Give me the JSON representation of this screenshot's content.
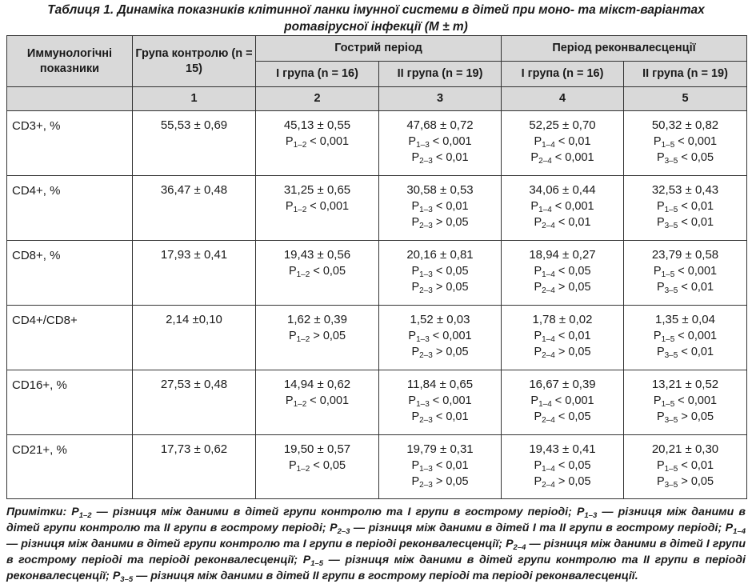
{
  "caption": {
    "line1": "Таблиця 1. Динаміка показників клітинної ланки імунної системи в дітей при моно- та мікст-варіантах",
    "line2": "ротавірусної інфекції (M ± m)"
  },
  "header": {
    "indicators": "Иммунологічні показники",
    "control_group": "Група контролю (n = 15)",
    "acute_period": "Гострий період",
    "convalescence_period": "Період реконвалесценції",
    "sub_columns": [
      "І група (n = 16)",
      "ІІ група (n = 19)",
      "І група (n = 16)",
      "ІІ група (n = 19)"
    ],
    "column_numbers": [
      "1",
      "2",
      "3",
      "4",
      "5"
    ]
  },
  "rows": [
    {
      "name": "CD3+, %",
      "c1": "55,53 ± 0,69",
      "c2": {
        "value": "45,13 ± 0,55",
        "p": [
          {
            "sub": "1–2",
            "rel": " < 0,001"
          }
        ]
      },
      "c3": {
        "value": "47,68 ± 0,72",
        "p": [
          {
            "sub": "1–3",
            "rel": " < 0,001"
          },
          {
            "sub": "2–3",
            "rel": " < 0,01"
          }
        ]
      },
      "c4": {
        "value": "52,25 ± 0,70",
        "p": [
          {
            "sub": "1–4",
            "rel": " < 0,01"
          },
          {
            "sub": "2–4",
            "rel": " < 0,001"
          }
        ]
      },
      "c5": {
        "value": "50,32 ± 0,82",
        "p": [
          {
            "sub": "1–5",
            "rel": " < 0,001"
          },
          {
            "sub": "3–5",
            "rel": " < 0,05"
          }
        ]
      }
    },
    {
      "name": "CD4+, %",
      "c1": "36,47 ± 0,48",
      "c2": {
        "value": "31,25 ± 0,65",
        "p": [
          {
            "sub": "1–2",
            "rel": " < 0,001"
          }
        ]
      },
      "c3": {
        "value": "30,58 ± 0,53",
        "p": [
          {
            "sub": "1–3",
            "rel": " < 0,01"
          },
          {
            "sub": "2–3",
            "rel": " > 0,05"
          }
        ]
      },
      "c4": {
        "value": "34,06 ± 0,44",
        "p": [
          {
            "sub": "1–4",
            "rel": " < 0,001"
          },
          {
            "sub": "2–4",
            "rel": " < 0,01"
          }
        ]
      },
      "c5": {
        "value": "32,53 ± 0,43",
        "p": [
          {
            "sub": "1–5",
            "rel": " < 0,01"
          },
          {
            "sub": "3–5",
            "rel": " < 0,01"
          }
        ]
      }
    },
    {
      "name": "CD8+, %",
      "c1": "17,93 ± 0,41",
      "c2": {
        "value": "19,43 ± 0,56",
        "p": [
          {
            "sub": "1–2",
            "rel": " < 0,05"
          }
        ]
      },
      "c3": {
        "value": "20,16 ± 0,81",
        "p": [
          {
            "sub": "1–3",
            "rel": " < 0,05"
          },
          {
            "sub": "2–3",
            "rel": " > 0,05"
          }
        ]
      },
      "c4": {
        "value": "18,94 ± 0,27",
        "p": [
          {
            "sub": "1–4",
            "rel": " < 0,05"
          },
          {
            "sub": "2–4",
            "rel": " > 0,05"
          }
        ]
      },
      "c5": {
        "value": "23,79 ± 0,58",
        "p": [
          {
            "sub": "1–5",
            "rel": " < 0,001"
          },
          {
            "sub": "3–5",
            "rel": " < 0,01"
          }
        ]
      }
    },
    {
      "name": "CD4+/CD8+",
      "c1": "2,14 ±0,10",
      "c2": {
        "value": "1,62 ± 0,39",
        "p": [
          {
            "sub": "1–2",
            "rel": " > 0,05"
          }
        ]
      },
      "c3": {
        "value": "1,52 ± 0,03",
        "p": [
          {
            "sub": "1–3",
            "rel": " < 0,001"
          },
          {
            "sub": "2–3",
            "rel": " > 0,05"
          }
        ]
      },
      "c4": {
        "value": "1,78 ± 0,02",
        "p": [
          {
            "sub": "1–4",
            "rel": " < 0,01"
          },
          {
            "sub": "2–4",
            "rel": " > 0,05"
          }
        ]
      },
      "c5": {
        "value": "1,35 ± 0,04",
        "p": [
          {
            "sub": "1–5",
            "rel": " < 0,001"
          },
          {
            "sub": "3–5",
            "rel": " < 0,01"
          }
        ]
      }
    },
    {
      "name": "CD16+, %",
      "c1": "27,53 ± 0,48",
      "c2": {
        "value": "14,94 ± 0,62",
        "p": [
          {
            "sub": "1–2",
            "rel": " < 0,001"
          }
        ]
      },
      "c3": {
        "value": "11,84 ± 0,65",
        "p": [
          {
            "sub": "1–3",
            "rel": " < 0,001"
          },
          {
            "sub": "2–3",
            "rel": " < 0,01"
          }
        ]
      },
      "c4": {
        "value": "16,67 ± 0,39",
        "p": [
          {
            "sub": "1–4",
            "rel": " < 0,001"
          },
          {
            "sub": "2–4",
            "rel": " < 0,05"
          }
        ]
      },
      "c5": {
        "value": "13,21 ± 0,52",
        "p": [
          {
            "sub": "1–5",
            "rel": " < 0,001"
          },
          {
            "sub": "3–5",
            "rel": " > 0,05"
          }
        ]
      }
    },
    {
      "name": "CD21+, %",
      "c1": "17,73 ± 0,62",
      "c2": {
        "value": "19,50 ± 0,57",
        "p": [
          {
            "sub": "1–2",
            "rel": " < 0,05"
          }
        ]
      },
      "c3": {
        "value": "19,79 ± 0,31",
        "p": [
          {
            "sub": "1–3",
            "rel": " < 0,01"
          },
          {
            "sub": "2–3",
            "rel": " > 0,05"
          }
        ]
      },
      "c4": {
        "value": "19,43 ± 0,41",
        "p": [
          {
            "sub": "1–4",
            "rel": " < 0,05"
          },
          {
            "sub": "2–4",
            "rel": " > 0,05"
          }
        ]
      },
      "c5": {
        "value": "20,21 ± 0,30",
        "p": [
          {
            "sub": "1–5",
            "rel": " < 0,01"
          },
          {
            "sub": "3–5",
            "rel": " > 0,05"
          }
        ]
      }
    }
  ],
  "notes": [
    {
      "text": "Примітки: P"
    },
    {
      "sub": "1–2"
    },
    {
      "text": " — різниця між даними в дітей групи контролю та І групи в гострому періоді; P"
    },
    {
      "sub": "1–3"
    },
    {
      "text": " — різниця між даними в дітей групи контролю та ІІ групи в гострому періоді; P"
    },
    {
      "sub": "2–3"
    },
    {
      "text": " — різниця між даними в дітей І та ІІ групи в гострому періоді; P"
    },
    {
      "sub": "1–4"
    },
    {
      "text": " — різниця між даними в дітей групи контролю та І групи в періоді реконвалесценції; P"
    },
    {
      "sub": "2–4"
    },
    {
      "text": " — різниця між даними в дітей І групи в гострому періоді та періоді реконвалесценції; P"
    },
    {
      "sub": "1–5"
    },
    {
      "text": " — різниця між даними в дітей групи контролю та ІІ групи в періоді реконвалесценції; P"
    },
    {
      "sub": "3–5"
    },
    {
      "text": " — різниця між даними в дітей ІІ групи в гострому періоді та періоді реконвалесценції."
    }
  ]
}
